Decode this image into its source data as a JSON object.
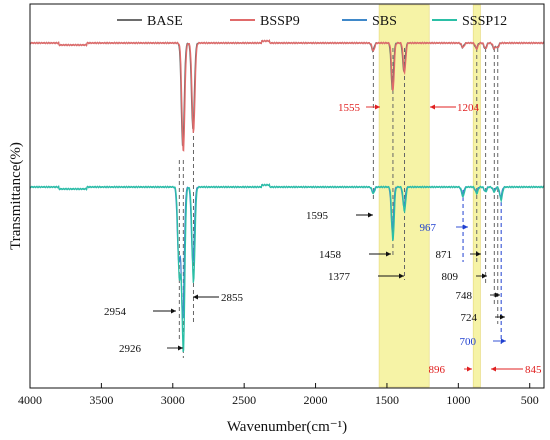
{
  "chart_data": {
    "type": "line",
    "xlabel": "Wavenumber(cm⁻¹)",
    "ylabel": "Transmittance(%)",
    "xlim": [
      4000,
      400
    ],
    "x_reversed": true,
    "x_ticks": [
      4000,
      3500,
      3000,
      2500,
      2000,
      1500,
      1000,
      500
    ],
    "y_tick_labels": false,
    "legend": {
      "placement": "top",
      "orientation": "horizontal"
    },
    "series": [
      {
        "name": "BASE",
        "color": "#6d6d6d"
      },
      {
        "name": "BSSP9",
        "color": "#e06a6a"
      },
      {
        "name": "SBS",
        "color": "#3f88c9"
      },
      {
        "name": "SSSP12",
        "color": "#2bbfa6"
      }
    ],
    "upper_group_peaks": [
      {
        "x": 2926,
        "depth": 0.95
      },
      {
        "x": 2855,
        "depth": 0.78
      },
      {
        "x": 1595,
        "depth": 0.07
      },
      {
        "x": 1458,
        "depth": 0.42
      },
      {
        "x": 1377,
        "depth": 0.26
      },
      {
        "x": 967,
        "depth": 0.04
      },
      {
        "x": 871,
        "depth": 0.05
      },
      {
        "x": 809,
        "depth": 0.05
      },
      {
        "x": 748,
        "depth": 0.05
      },
      {
        "x": 724,
        "depth": 0.04
      }
    ],
    "lower_group_peaks": [
      {
        "x": 2954,
        "depth": 0.55
      },
      {
        "x": 2926,
        "depth": 1.0
      },
      {
        "x": 2855,
        "depth": 0.58
      },
      {
        "x": 1595,
        "depth": 0.04
      },
      {
        "x": 1458,
        "depth": 0.33
      },
      {
        "x": 1377,
        "depth": 0.15
      },
      {
        "x": 967,
        "depth": 0.06
      },
      {
        "x": 871,
        "depth": 0.04
      },
      {
        "x": 809,
        "depth": 0.03
      },
      {
        "x": 748,
        "depth": 0.03
      },
      {
        "x": 700,
        "depth": 0.08
      }
    ],
    "highlight_bands": [
      {
        "from": 1555,
        "to": 1204,
        "color": "#f6f3a6"
      },
      {
        "from": 896,
        "to": 845,
        "color": "#f6f3a6"
      }
    ],
    "annotations": [
      {
        "text": "1555",
        "x": 1555,
        "color": "#e02020",
        "direction": "left"
      },
      {
        "text": "1204",
        "x": 1204,
        "color": "#e02020",
        "direction": "left"
      },
      {
        "text": "1595",
        "x": 1595,
        "color": "#111111",
        "direction": "right"
      },
      {
        "text": "967",
        "x": 967,
        "color": "#2040d0",
        "direction": "right"
      },
      {
        "text": "1458",
        "x": 1458,
        "color": "#111111",
        "direction": "right"
      },
      {
        "text": "871",
        "x": 871,
        "color": "#111111",
        "direction": "right"
      },
      {
        "text": "1377",
        "x": 1377,
        "color": "#111111",
        "direction": "right"
      },
      {
        "text": "809",
        "x": 809,
        "color": "#111111",
        "direction": "right"
      },
      {
        "text": "748",
        "x": 748,
        "color": "#111111",
        "direction": "right"
      },
      {
        "text": "2954",
        "x": 2954,
        "color": "#111111",
        "direction": "right"
      },
      {
        "text": "2855",
        "x": 2855,
        "color": "#111111",
        "direction": "left"
      },
      {
        "text": "724",
        "x": 724,
        "color": "#111111",
        "direction": "right"
      },
      {
        "text": "2926",
        "x": 2926,
        "color": "#111111",
        "direction": "right"
      },
      {
        "text": "700",
        "x": 700,
        "color": "#2040d0",
        "direction": "right"
      },
      {
        "text": "896",
        "x": 896,
        "color": "#e02020",
        "direction": "right"
      },
      {
        "text": "845",
        "x": 845,
        "color": "#e02020",
        "direction": "left"
      }
    ]
  }
}
